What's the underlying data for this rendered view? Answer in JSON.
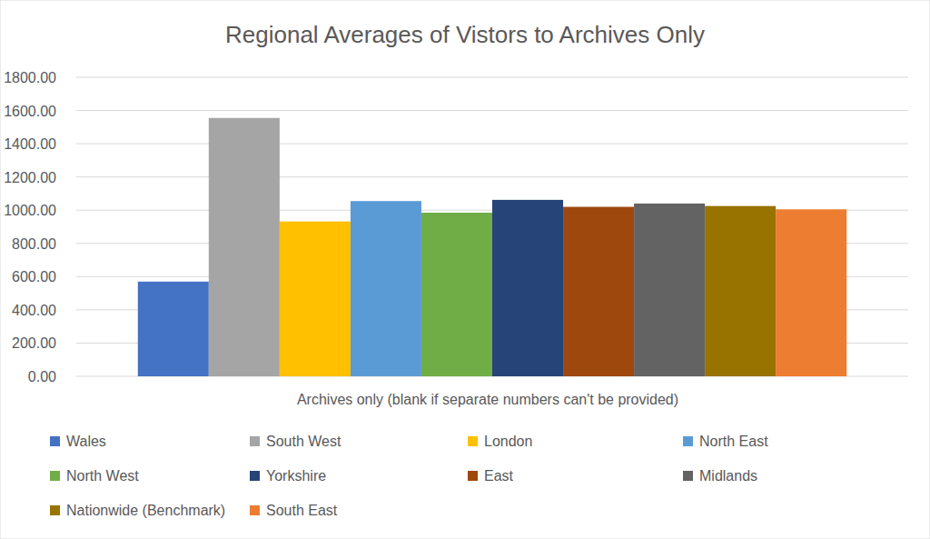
{
  "chart_data": {
    "type": "bar",
    "title": "Regional Averages of Vistors to Archives Only",
    "categories": [
      "Archives only (blank if separate numbers can't be provided)"
    ],
    "series": [
      {
        "name": "Wales",
        "color": "#4472c4",
        "values": [
          570
        ]
      },
      {
        "name": "South West",
        "color": "#a5a5a5",
        "values": [
          1555
        ]
      },
      {
        "name": "London",
        "color": "#ffc000",
        "values": [
          932
        ]
      },
      {
        "name": "North East",
        "color": "#5b9bd5",
        "values": [
          1055
        ]
      },
      {
        "name": "North West",
        "color": "#70ad47",
        "values": [
          985
        ]
      },
      {
        "name": "Yorkshire",
        "color": "#264478",
        "values": [
          1062
        ]
      },
      {
        "name": "East",
        "color": "#9e480e",
        "values": [
          1020
        ]
      },
      {
        "name": "Midlands",
        "color": "#636363",
        "values": [
          1040
        ]
      },
      {
        "name": "Nationwide (Benchmark)",
        "color": "#997300",
        "values": [
          1025
        ]
      },
      {
        "name": "South East",
        "color": "#ed7d31",
        "values": [
          1005
        ]
      }
    ],
    "ylim": [
      0,
      1800
    ],
    "yticks": [
      {
        "value": 0,
        "label": "0.00"
      },
      {
        "value": 200,
        "label": "200.00"
      },
      {
        "value": 400,
        "label": "400.00"
      },
      {
        "value": 600,
        "label": "600.00"
      },
      {
        "value": 800,
        "label": "800.00"
      },
      {
        "value": 1000,
        "label": "1000.00"
      },
      {
        "value": 1200,
        "label": "1200.00"
      },
      {
        "value": 1400,
        "label": "1400.00"
      },
      {
        "value": 1600,
        "label": "1600.00"
      },
      {
        "value": 1800,
        "label": "1800.00"
      }
    ],
    "grid": true,
    "legend": "bottom"
  }
}
